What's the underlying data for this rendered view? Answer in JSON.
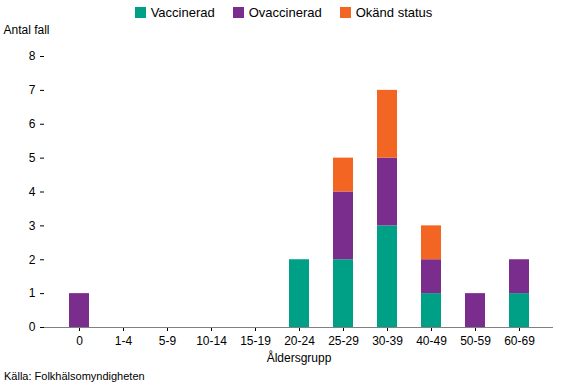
{
  "chart_data": {
    "type": "bar",
    "stacked": true,
    "categories": [
      "0",
      "1-4",
      "5-9",
      "10-14",
      "15-19",
      "20-24",
      "25-29",
      "30-39",
      "40-49",
      "50-59",
      "60-69"
    ],
    "series": [
      {
        "name": "Vaccinerad",
        "color": "#00a086",
        "values": [
          0,
          0,
          0,
          0,
          0,
          2,
          2,
          3,
          1,
          0,
          1
        ]
      },
      {
        "name": "Ovaccinerad",
        "color": "#7b2d8e",
        "values": [
          1,
          0,
          0,
          0,
          0,
          0,
          2,
          2,
          1,
          1,
          1
        ]
      },
      {
        "name": "Okänd status",
        "color": "#f26522",
        "values": [
          0,
          0,
          0,
          0,
          0,
          0,
          1,
          2,
          1,
          0,
          0
        ]
      }
    ],
    "xlabel": "Åldersgrupp",
    "ylabel": "Antal fall",
    "ylim": [
      0,
      8
    ],
    "yticks": [
      0,
      1,
      2,
      3,
      4,
      5,
      6,
      7,
      8
    ],
    "grid": false,
    "legend": "top",
    "caption": "Källa: Folkhälsomyndigheten"
  }
}
